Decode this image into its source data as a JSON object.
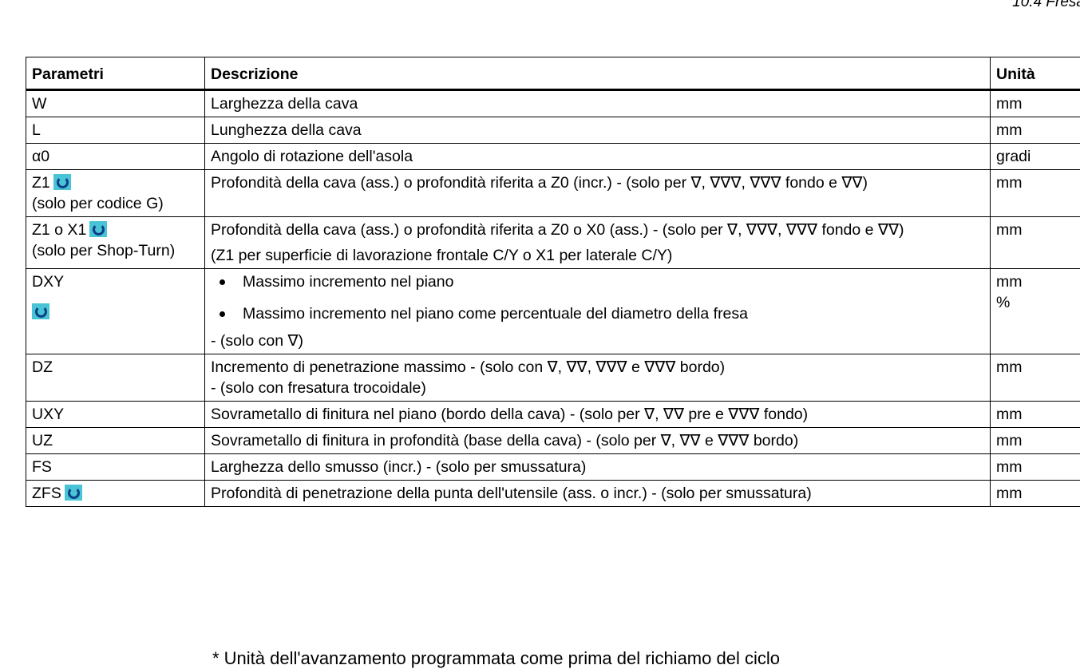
{
  "page_header": "10.4 Fresa",
  "table": {
    "headers": [
      "Parametri",
      "Descrizione",
      "Unità"
    ],
    "rows": [
      {
        "param": "W",
        "desc": "Larghezza della cava",
        "unit": "mm"
      },
      {
        "param": "L",
        "desc": "Lunghezza della cava",
        "unit": "mm"
      },
      {
        "param": "α0",
        "desc": "Angolo di rotazione dell'asola",
        "unit": "gradi"
      },
      {
        "param": "Z1",
        "param_note": "(solo per codice G)",
        "icon": "cycle-icon",
        "desc": "Profondità della cava (ass.) o profondità riferita a Z0 (incr.) - (solo per ∇, ∇∇∇, ∇∇∇ fondo e ∇∇)",
        "unit": "mm"
      },
      {
        "param": "Z1 o X1",
        "param_note": "(solo per Shop-Turn)",
        "icon": "cycle-icon",
        "desc": "Profondità della cava (ass.) o profondità riferita a Z0 o X0 (ass.) - (solo per ∇, ∇∇∇, ∇∇∇ fondo e ∇∇)",
        "desc_note": "(Z1 per superficie di lavorazione frontale C/Y o X1 per laterale C/Y)",
        "unit": "mm"
      },
      {
        "param": "DXY",
        "icon": "cycle-icon",
        "bullets": [
          "Massimo incremento nel piano",
          "Massimo incremento nel piano come percentuale del diametro della fresa"
        ],
        "desc_note": "- (solo con ∇)",
        "units": [
          "mm",
          "%"
        ]
      },
      {
        "param": "DZ",
        "desc": "Incremento di penetrazione massimo - (solo con ∇, ∇∇, ∇∇∇ e ∇∇∇ bordo)",
        "desc_note": "- (solo con fresatura trocoidale)",
        "unit": "mm"
      },
      {
        "param": "UXY",
        "desc": "Sovrametallo di finitura nel piano (bordo della cava) - (solo per ∇, ∇∇ pre e ∇∇∇ fondo)",
        "unit": "mm"
      },
      {
        "param": "UZ",
        "desc": "Sovrametallo di finitura in profondità (base della cava) - (solo per ∇, ∇∇ e ∇∇∇ bordo)",
        "unit": "mm"
      },
      {
        "param": "FS",
        "desc": "Larghezza dello smusso (incr.) - (solo per smussatura)",
        "unit": "mm"
      },
      {
        "param": "ZFS",
        "icon": "cycle-icon",
        "desc": "Profondità di penetrazione della punta dell'utensile (ass. o incr.) - (solo per smussatura)",
        "unit": "mm"
      }
    ]
  },
  "footnote": "* Unità dell'avanzamento programmata come prima del richiamo del ciclo"
}
